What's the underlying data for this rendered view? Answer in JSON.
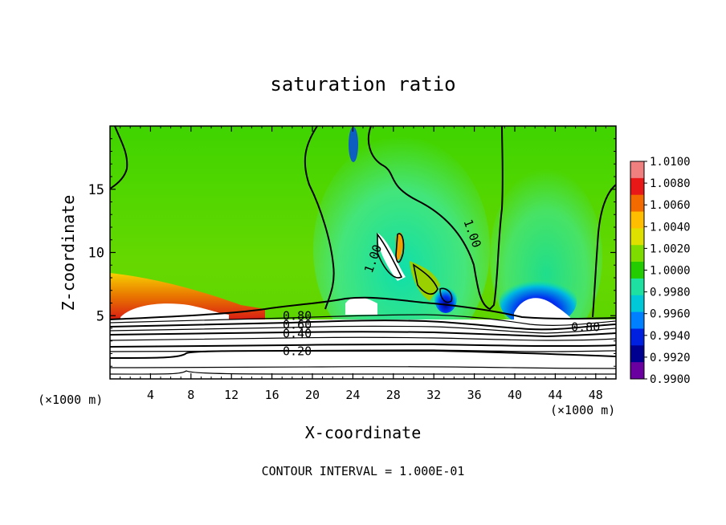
{
  "chart_data": {
    "type": "heatmap",
    "title": "saturation ratio",
    "xlabel": "X-coordinate",
    "ylabel": "Z-coordinate",
    "x_unit": "(×1000 m)",
    "z_unit": "(×1000 m)",
    "footer": "CONTOUR INTERVAL = 1.000E-01",
    "xlim": [
      0,
      50
    ],
    "ylim": [
      0,
      20
    ],
    "x_ticks": [
      4,
      8,
      12,
      16,
      20,
      24,
      28,
      32,
      36,
      40,
      44,
      48
    ],
    "y_ticks": [
      5,
      10,
      15
    ],
    "colorbar": {
      "min": 0.99,
      "max": 1.01,
      "labels": [
        "1.0100",
        "1.0080",
        "1.0060",
        "1.0040",
        "1.0020",
        "1.0000",
        "0.9980",
        "0.9960",
        "0.9940",
        "0.9920",
        "0.9900"
      ],
      "colors": [
        "#f08080",
        "#e81818",
        "#f26a00",
        "#ffbf00",
        "#e0e000",
        "#7fdc00",
        "#22cc00",
        "#1ee0a0",
        "#00c8d8",
        "#0080ff",
        "#0020e0",
        "#000090",
        "#6a00a0"
      ]
    },
    "contour_labels": [
      {
        "text": "1.00",
        "x": 26.0,
        "z": 9.5
      },
      {
        "text": "1.00",
        "x": 35.8,
        "z": 11.5
      },
      {
        "text": "0.80",
        "x": 18.5,
        "z": 5.0
      },
      {
        "text": "0.60",
        "x": 18.5,
        "z": 4.3
      },
      {
        "text": "0.40",
        "x": 18.5,
        "z": 3.6
      },
      {
        "text": "0.20",
        "x": 18.5,
        "z": 2.2
      },
      {
        "text": "0.80",
        "x": 47.0,
        "z": 4.1
      }
    ]
  }
}
